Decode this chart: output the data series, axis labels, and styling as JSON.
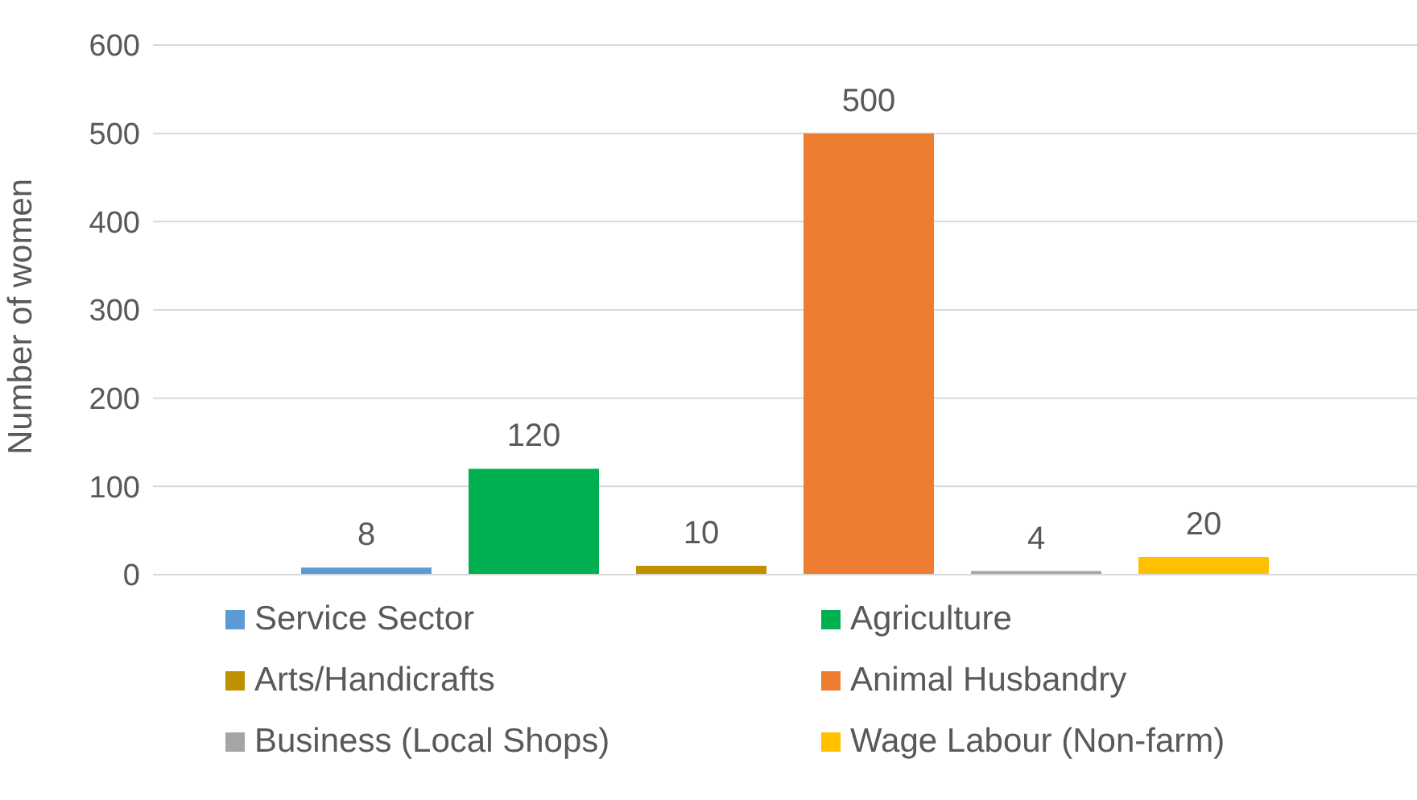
{
  "chart_data": {
    "type": "bar",
    "ylabel": "Number of women",
    "categories": [
      null
    ],
    "series": [
      {
        "name": "Service Sector",
        "color": "#5b9bd5",
        "values": [
          8
        ]
      },
      {
        "name": "Agriculture",
        "color": "#00b050",
        "values": [
          120
        ]
      },
      {
        "name": "Arts/Handicrafts",
        "color": "#bf9000",
        "values": [
          10
        ]
      },
      {
        "name": "Animal Husbandry",
        "color": "#ed7d31",
        "values": [
          500
        ]
      },
      {
        "name": "Business (Local Shops)",
        "color": "#a5a5a5",
        "values": [
          4
        ]
      },
      {
        "name": "Wage Labour (Non-farm)",
        "color": "#ffc000",
        "values": [
          20
        ]
      }
    ],
    "ylim": [
      0,
      600
    ],
    "yticks": [
      0,
      100,
      200,
      300,
      400,
      500,
      600
    ],
    "grid": "y",
    "legend": "bottom",
    "data_labels": true
  }
}
